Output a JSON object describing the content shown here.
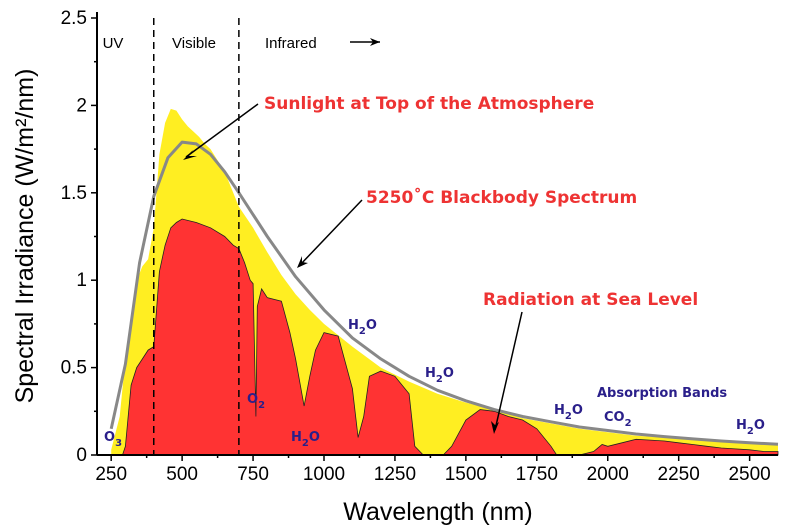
{
  "chart_data": {
    "type": "area",
    "xlabel": "Wavelength (nm)",
    "ylabel": "Spectral Irradiance (W/m²/nm)",
    "xlim": [
      200,
      2600
    ],
    "ylim": [
      0,
      2.5
    ],
    "x_ticks": [
      "250",
      "500",
      "750",
      "1000",
      "1250",
      "1500",
      "1750",
      "2000",
      "2250",
      "2500"
    ],
    "y_ticks": [
      "0",
      "0.5",
      "1",
      "1.5",
      "2",
      "2.5"
    ],
    "regions": [
      {
        "label": "UV",
        "range": [
          200,
          400
        ]
      },
      {
        "label": "Visible",
        "range": [
          400,
          700
        ]
      },
      {
        "label": "Infrared",
        "range": [
          700,
          2600
        ]
      }
    ],
    "series": [
      {
        "name": "Sunlight at Top of the Atmosphere",
        "color": "#ffee22",
        "x": [
          250,
          280,
          300,
          320,
          340,
          360,
          380,
          400,
          420,
          440,
          460,
          480,
          500,
          520,
          540,
          560,
          580,
          600,
          650,
          700,
          750,
          800,
          850,
          900,
          950,
          1000,
          1100,
          1200,
          1300,
          1400,
          1500,
          1600,
          1700,
          1800,
          1900,
          2000,
          2100,
          2200,
          2300,
          2400,
          2500,
          2600
        ],
        "y": [
          0.03,
          0.22,
          0.55,
          0.78,
          1.0,
          1.08,
          1.12,
          1.3,
          1.72,
          1.9,
          1.98,
          1.97,
          1.92,
          1.88,
          1.85,
          1.82,
          1.78,
          1.75,
          1.62,
          1.42,
          1.3,
          1.16,
          1.03,
          0.92,
          0.83,
          0.75,
          0.62,
          0.5,
          0.42,
          0.35,
          0.3,
          0.26,
          0.21,
          0.18,
          0.15,
          0.13,
          0.11,
          0.1,
          0.085,
          0.075,
          0.065,
          0.055
        ]
      },
      {
        "name": "Radiation at Sea Level",
        "color": "#ff3333",
        "x": [
          290,
          300,
          320,
          340,
          360,
          380,
          400,
          420,
          440,
          460,
          480,
          500,
          550,
          600,
          650,
          680,
          700,
          720,
          740,
          750,
          760,
          765,
          780,
          800,
          850,
          880,
          900,
          930,
          950,
          970,
          1000,
          1050,
          1100,
          1120,
          1140,
          1160,
          1200,
          1250,
          1300,
          1320,
          1350,
          1380,
          1400,
          1420,
          1450,
          1500,
          1550,
          1600,
          1650,
          1700,
          1750,
          1800,
          1820,
          1850,
          1900,
          1950,
          1980,
          2000,
          2050,
          2100,
          2150,
          2200,
          2250,
          2300,
          2350,
          2400,
          2450,
          2500,
          2550,
          2600
        ],
        "y": [
          0.0,
          0.05,
          0.4,
          0.5,
          0.55,
          0.6,
          0.62,
          1.05,
          1.2,
          1.3,
          1.33,
          1.35,
          1.33,
          1.3,
          1.25,
          1.2,
          1.18,
          1.1,
          1.0,
          0.98,
          0.22,
          0.85,
          0.95,
          0.9,
          0.88,
          0.7,
          0.55,
          0.28,
          0.45,
          0.6,
          0.7,
          0.68,
          0.38,
          0.1,
          0.22,
          0.45,
          0.48,
          0.45,
          0.35,
          0.05,
          0.0,
          0.0,
          0.0,
          0.0,
          0.05,
          0.2,
          0.26,
          0.25,
          0.22,
          0.2,
          0.15,
          0.05,
          0.0,
          0.0,
          0.0,
          0.02,
          0.06,
          0.05,
          0.07,
          0.09,
          0.085,
          0.08,
          0.07,
          0.06,
          0.05,
          0.04,
          0.035,
          0.03,
          0.02,
          0.02
        ]
      },
      {
        "name": "5250˚C Blackbody Spectrum",
        "color": "#888888",
        "x": [
          250,
          300,
          350,
          400,
          450,
          500,
          550,
          600,
          650,
          700,
          800,
          900,
          1000,
          1100,
          1200,
          1300,
          1400,
          1500,
          1600,
          1700,
          1800,
          1900,
          2000,
          2100,
          2200,
          2300,
          2400,
          2500,
          2600
        ],
        "y": [
          0.15,
          0.52,
          1.1,
          1.48,
          1.7,
          1.79,
          1.78,
          1.72,
          1.62,
          1.5,
          1.25,
          1.02,
          0.83,
          0.67,
          0.55,
          0.45,
          0.37,
          0.31,
          0.26,
          0.22,
          0.19,
          0.16,
          0.14,
          0.12,
          0.105,
          0.092,
          0.08,
          0.07,
          0.062
        ]
      }
    ],
    "annotations": {
      "top_atmosphere": "Sunlight at Top of the Atmosphere",
      "blackbody": "5250˚C Blackbody Spectrum",
      "sea_level": "Radiation at Sea Level",
      "absorption_bands": "Absorption Bands"
    },
    "molecules": {
      "o3": {
        "main": "O",
        "sub": "3"
      },
      "o2": {
        "main": "O",
        "sub": "2"
      },
      "h2o": {
        "main": "H",
        "sub": "2",
        "tail": "O"
      },
      "co2": {
        "main": "CO",
        "sub": "2"
      }
    }
  }
}
